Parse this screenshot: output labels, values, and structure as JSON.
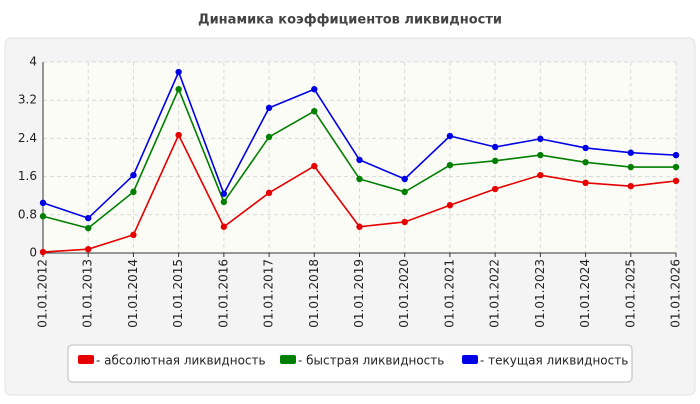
{
  "chart_data": {
    "type": "line",
    "title": "Динамика коэффициентов ликвидности",
    "categories": [
      "01.01.2012",
      "01.01.2013",
      "01.01.2014",
      "01.01.2015",
      "01.01.2016",
      "01.01.2017",
      "01.01.2018",
      "01.01.2019",
      "01.01.2020",
      "01.01.2021",
      "01.01.2022",
      "01.01.2023",
      "01.01.2024",
      "01.01.2025",
      "01.01.2026"
    ],
    "series": [
      {
        "name": "- абсолютная ликвидность",
        "color": "#e60000",
        "values": [
          0.02,
          0.08,
          0.38,
          2.47,
          0.55,
          1.26,
          1.82,
          0.55,
          0.65,
          1.0,
          1.34,
          1.63,
          1.47,
          1.4,
          1.51
        ]
      },
      {
        "name": "- быстрая ликвидность",
        "color": "#007f00",
        "values": [
          0.77,
          0.52,
          1.28,
          3.43,
          1.07,
          2.43,
          2.97,
          1.55,
          1.28,
          1.84,
          1.93,
          2.05,
          1.9,
          1.8,
          1.8
        ]
      },
      {
        "name": "- текущая ликвидность",
        "color": "#0000e6",
        "values": [
          1.05,
          0.73,
          1.63,
          3.79,
          1.24,
          3.04,
          3.43,
          1.95,
          1.55,
          2.45,
          2.22,
          2.39,
          2.2,
          2.1,
          2.05
        ]
      }
    ],
    "ylim": [
      0,
      4
    ],
    "yticks": [
      0,
      0.8,
      1.6,
      2.4,
      3.2,
      4
    ],
    "grid": true
  }
}
